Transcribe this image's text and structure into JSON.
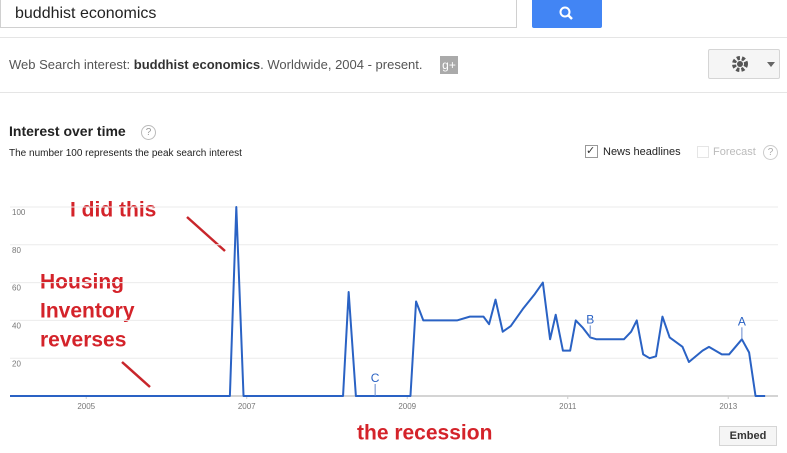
{
  "search": {
    "query": "buddhist economics"
  },
  "header": {
    "prefix": "Web Search interest: ",
    "term": "buddhist economics",
    "suffix": ". Worldwide, 2004 - present."
  },
  "section": {
    "title": "Interest over time",
    "help": "?",
    "note": "The number 100 represents the peak search interest",
    "news_toggle": "News headlines",
    "forecast_toggle": "Forecast",
    "forecast_help": "?",
    "embed": "Embed"
  },
  "chart_data": {
    "type": "line",
    "x": [
      2004.05,
      2006.79,
      2006.87,
      2006.96,
      2008.2,
      2008.27,
      2008.36,
      2009.04,
      2009.11,
      2009.2,
      2009.62,
      2009.78,
      2009.95,
      2010.02,
      2010.1,
      2010.19,
      2010.29,
      2010.44,
      2010.59,
      2010.69,
      2010.78,
      2010.85,
      2010.94,
      2011.03,
      2011.1,
      2011.19,
      2011.28,
      2011.36,
      2011.7,
      2011.79,
      2011.86,
      2011.94,
      2012.02,
      2012.1,
      2012.18,
      2012.27,
      2012.43,
      2012.51,
      2012.68,
      2012.76,
      2012.92,
      2013.01,
      2013.17,
      2013.26,
      2013.34,
      2013.46
    ],
    "series": [
      {
        "color": "#2a62c4",
        "values": [
          0,
          0,
          100,
          0,
          0,
          55,
          0,
          0,
          50,
          40,
          40,
          42,
          42,
          38,
          51,
          34,
          37,
          46,
          54,
          60,
          30,
          43,
          24,
          24,
          40,
          36,
          31,
          30,
          30,
          34,
          40,
          22,
          20,
          21,
          42,
          31,
          26,
          18,
          24,
          26,
          22,
          22,
          30,
          23,
          0,
          0
        ]
      }
    ],
    "xlim": [
      2004.05,
      2013.62
    ],
    "xticks": [
      2005,
      2007,
      2009,
      2011,
      2013
    ],
    "ylim": [
      0,
      100
    ],
    "yticks": [
      20,
      40,
      60,
      80,
      100
    ],
    "grid": true,
    "news_markers": [
      {
        "label": "C",
        "x": 2008.6
      },
      {
        "label": "B",
        "x": 2011.28
      },
      {
        "label": "A",
        "x": 2013.17
      }
    ]
  },
  "annotations": {
    "did": "I did this",
    "housing": [
      "Housing",
      "Inventory",
      "reverses"
    ],
    "recession": "the recession"
  }
}
